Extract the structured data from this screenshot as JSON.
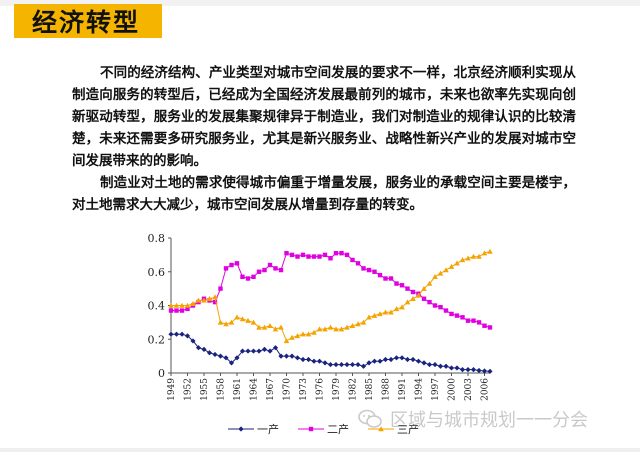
{
  "header": {
    "title": "经济转型"
  },
  "paragraphs": [
    "不同的经济结构、产业类型对城市空间发展的要求不一样，北京经济顺利实现从制造向服务的转型后，已经成为全国经济发展最前列的城市，未来也欲率先实现向创新驱动转型，服务业的发展集聚规律异于制造业，我们对制造业的规律认识的比较清楚，未来还需要多研究服务业，尤其是新兴服务业、战略性新兴产业的发展对城市空间发展带来的的影响。",
    "制造业对土地的需求使得城市偏重于增量发展，服务业的承载空间主要是楼宇，对土地需求大大减少，城市空间发展从增量到存量的转变。"
  ],
  "chart_data": {
    "type": "line",
    "title": "",
    "xlabel": "",
    "ylabel": "",
    "xlim": [
      1949,
      2007
    ],
    "ylim": [
      0,
      0.8
    ],
    "yticks": [
      "0",
      "0.2",
      "0.4",
      "0.6",
      "0.8"
    ],
    "xticks": [
      "1949",
      "1952",
      "1955",
      "1958",
      "1961",
      "1964",
      "1967",
      "1970",
      "1973",
      "1976",
      "1979",
      "1982",
      "1985",
      "1988",
      "1991",
      "1994",
      "1997",
      "2000",
      "2003",
      "2006"
    ],
    "grid": false,
    "legend_position": "bottom",
    "series": [
      {
        "name": "一产",
        "color": "#1a237e",
        "marker": "diamond",
        "x": [
          1949,
          1950,
          1951,
          1952,
          1953,
          1954,
          1955,
          1956,
          1957,
          1958,
          1959,
          1960,
          1961,
          1962,
          1963,
          1964,
          1965,
          1966,
          1967,
          1968,
          1969,
          1970,
          1971,
          1972,
          1973,
          1974,
          1975,
          1976,
          1977,
          1978,
          1979,
          1980,
          1981,
          1982,
          1983,
          1984,
          1985,
          1986,
          1987,
          1988,
          1989,
          1990,
          1991,
          1992,
          1993,
          1994,
          1995,
          1996,
          1997,
          1998,
          1999,
          2000,
          2001,
          2002,
          2003,
          2004,
          2005,
          2006,
          2007
        ],
        "values": [
          0.23,
          0.23,
          0.23,
          0.22,
          0.19,
          0.15,
          0.14,
          0.12,
          0.11,
          0.1,
          0.09,
          0.06,
          0.09,
          0.13,
          0.13,
          0.13,
          0.13,
          0.14,
          0.13,
          0.15,
          0.1,
          0.1,
          0.1,
          0.09,
          0.08,
          0.08,
          0.07,
          0.07,
          0.06,
          0.05,
          0.05,
          0.05,
          0.05,
          0.05,
          0.05,
          0.04,
          0.06,
          0.07,
          0.07,
          0.08,
          0.08,
          0.09,
          0.09,
          0.08,
          0.08,
          0.07,
          0.06,
          0.05,
          0.05,
          0.04,
          0.04,
          0.03,
          0.03,
          0.02,
          0.02,
          0.02,
          0.015,
          0.012,
          0.01
        ]
      },
      {
        "name": "二产",
        "color": "#e000e0",
        "marker": "square",
        "x": [
          1949,
          1950,
          1951,
          1952,
          1953,
          1954,
          1955,
          1956,
          1957,
          1958,
          1959,
          1960,
          1961,
          1962,
          1963,
          1964,
          1965,
          1966,
          1967,
          1968,
          1969,
          1970,
          1971,
          1972,
          1973,
          1974,
          1975,
          1976,
          1977,
          1978,
          1979,
          1980,
          1981,
          1982,
          1983,
          1984,
          1985,
          1986,
          1987,
          1988,
          1989,
          1990,
          1991,
          1992,
          1993,
          1994,
          1995,
          1996,
          1997,
          1998,
          1999,
          2000,
          2001,
          2002,
          2003,
          2004,
          2005,
          2006,
          2007
        ],
        "values": [
          0.37,
          0.37,
          0.37,
          0.38,
          0.4,
          0.42,
          0.44,
          0.43,
          0.42,
          0.5,
          0.62,
          0.64,
          0.65,
          0.57,
          0.56,
          0.57,
          0.6,
          0.61,
          0.64,
          0.62,
          0.61,
          0.71,
          0.7,
          0.69,
          0.7,
          0.69,
          0.69,
          0.69,
          0.7,
          0.68,
          0.71,
          0.71,
          0.7,
          0.67,
          0.65,
          0.62,
          0.61,
          0.6,
          0.58,
          0.56,
          0.56,
          0.53,
          0.52,
          0.5,
          0.48,
          0.47,
          0.44,
          0.42,
          0.4,
          0.39,
          0.37,
          0.35,
          0.34,
          0.33,
          0.31,
          0.31,
          0.3,
          0.28,
          0.27
        ]
      },
      {
        "name": "三产",
        "color": "#f4a300",
        "marker": "triangle",
        "x": [
          1949,
          1950,
          1951,
          1952,
          1953,
          1954,
          1955,
          1956,
          1957,
          1958,
          1959,
          1960,
          1961,
          1962,
          1963,
          1964,
          1965,
          1966,
          1967,
          1968,
          1969,
          1970,
          1971,
          1972,
          1973,
          1974,
          1975,
          1976,
          1977,
          1978,
          1979,
          1980,
          1981,
          1982,
          1983,
          1984,
          1985,
          1986,
          1987,
          1988,
          1989,
          1990,
          1991,
          1992,
          1993,
          1994,
          1995,
          1996,
          1997,
          1998,
          1999,
          2000,
          2001,
          2002,
          2003,
          2004,
          2005,
          2006,
          2007
        ],
        "values": [
          0.4,
          0.4,
          0.4,
          0.4,
          0.41,
          0.43,
          0.43,
          0.44,
          0.45,
          0.3,
          0.29,
          0.3,
          0.33,
          0.32,
          0.31,
          0.3,
          0.27,
          0.27,
          0.28,
          0.26,
          0.27,
          0.19,
          0.21,
          0.22,
          0.23,
          0.23,
          0.24,
          0.26,
          0.26,
          0.27,
          0.26,
          0.26,
          0.27,
          0.28,
          0.29,
          0.3,
          0.33,
          0.34,
          0.35,
          0.36,
          0.36,
          0.38,
          0.39,
          0.42,
          0.44,
          0.46,
          0.5,
          0.53,
          0.57,
          0.59,
          0.61,
          0.63,
          0.65,
          0.67,
          0.68,
          0.69,
          0.69,
          0.71,
          0.72
        ]
      }
    ]
  },
  "watermark": {
    "text": "区域与城市规划一一分会"
  }
}
